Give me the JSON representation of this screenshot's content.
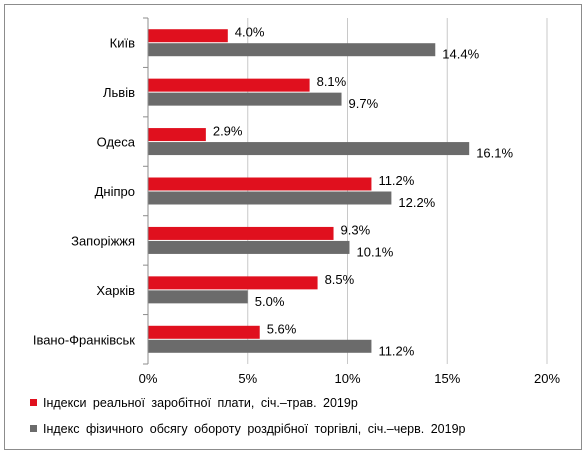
{
  "chart_data": {
    "type": "bar",
    "orientation": "horizontal",
    "categories": [
      "Київ",
      "Львів",
      "Одеса",
      "Дніпро",
      "Запоріжжя",
      "Харків",
      "Івано-Франківськ"
    ],
    "series": [
      {
        "name": "Індекси реальної заробітної плати, січ.–трав. 2019р",
        "color": "#e0101e",
        "values": [
          4.0,
          8.1,
          2.9,
          11.2,
          9.3,
          8.5,
          5.6
        ],
        "labels": [
          "4.0%",
          "8.1%",
          "2.9%",
          "11.2%",
          "9.3%",
          "8.5%",
          "5.6%"
        ]
      },
      {
        "name": "Індекс фізичного обсягу обороту роздрібної торгівлі, січ.–черв. 2019р",
        "color": "#6b6b6b",
        "values": [
          14.4,
          9.7,
          16.1,
          12.2,
          10.1,
          5.0,
          11.2
        ],
        "labels": [
          "14.4%",
          "9.7%",
          "16.1%",
          "12.2%",
          "10.1%",
          "5.0%",
          "11.2%"
        ]
      }
    ],
    "xlim": [
      0,
      20
    ],
    "xticks": [
      0,
      5,
      10,
      15,
      20
    ],
    "xtick_labels": [
      "0%",
      "5%",
      "10%",
      "15%",
      "20%"
    ],
    "grid": "vertical",
    "legend_position": "bottom",
    "title": "",
    "xlabel": "",
    "ylabel": ""
  }
}
